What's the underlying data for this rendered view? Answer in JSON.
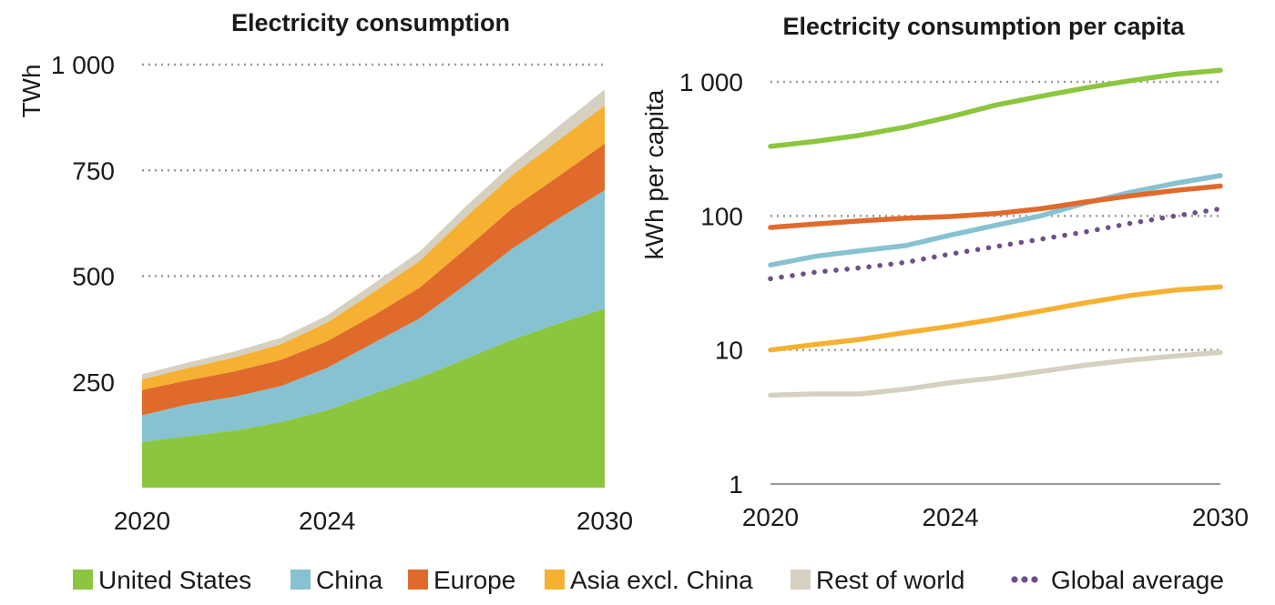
{
  "chart_data": [
    {
      "type": "area",
      "title": "Electricity consumption",
      "xlabel": "",
      "ylabel": "TWh",
      "x": [
        2020,
        2021,
        2022,
        2023,
        2024,
        2025,
        2026,
        2027,
        2028,
        2029,
        2030
      ],
      "xticks": [
        "2020",
        "2024",
        "2030"
      ],
      "yticks": [
        "250",
        "500",
        "750",
        "1 000"
      ],
      "ylim": [
        0,
        1000
      ],
      "stacked": true,
      "grid": "horizontal dotted",
      "series": [
        {
          "name": "United States",
          "color": "#8cc63f",
          "values": [
            108,
            122,
            135,
            155,
            183,
            222,
            260,
            305,
            350,
            388,
            423
          ]
        },
        {
          "name": "China",
          "color": "#86c2d2",
          "values": [
            63,
            75,
            80,
            85,
            100,
            120,
            140,
            175,
            215,
            248,
            280
          ]
        },
        {
          "name": "Europe",
          "color": "#e06a2c",
          "values": [
            60,
            57,
            60,
            62,
            63,
            65,
            73,
            85,
            95,
            100,
            110
          ]
        },
        {
          "name": "Asia excl. China",
          "color": "#f6b132",
          "values": [
            25,
            29,
            33,
            37,
            44,
            55,
            63,
            75,
            78,
            85,
            90
          ]
        },
        {
          "name": "Rest of world",
          "color": "#d5d0c0",
          "values": [
            12,
            13,
            14,
            15,
            17,
            20,
            22,
            25,
            27,
            33,
            38
          ]
        }
      ]
    },
    {
      "type": "line",
      "title": "Electricity consumption per capita",
      "xlabel": "",
      "ylabel": "kWh per capita",
      "yscale": "log",
      "x": [
        2020,
        2021,
        2022,
        2023,
        2024,
        2025,
        2026,
        2027,
        2028,
        2029,
        2030
      ],
      "xticks": [
        "2020",
        "2024",
        "2030"
      ],
      "yticks": [
        "1",
        "10",
        "100",
        "1 000"
      ],
      "ylim": [
        1,
        1000
      ],
      "grid": "horizontal dotted",
      "series": [
        {
          "name": "United States",
          "color": "#8cc63f",
          "style": "solid",
          "values": [
            330,
            360,
            400,
            460,
            550,
            670,
            780,
            900,
            1020,
            1140,
            1220
          ]
        },
        {
          "name": "China",
          "color": "#86c2d2",
          "style": "solid",
          "values": [
            43,
            50,
            55,
            60,
            72,
            85,
            100,
            125,
            150,
            175,
            200
          ]
        },
        {
          "name": "Europe",
          "color": "#e06a2c",
          "style": "solid",
          "values": [
            82,
            87,
            92,
            96,
            99,
            104,
            113,
            127,
            141,
            155,
            167
          ]
        },
        {
          "name": "Asia excl. China",
          "color": "#f6b132",
          "style": "solid",
          "values": [
            10,
            11,
            12,
            13.5,
            15,
            17,
            19.5,
            22.5,
            25.5,
            28,
            29.5
          ]
        },
        {
          "name": "Rest of world",
          "color": "#d5d0c0",
          "style": "solid",
          "values": [
            4.6,
            4.7,
            4.7,
            5.1,
            5.7,
            6.2,
            6.9,
            7.7,
            8.4,
            9.0,
            9.6
          ]
        },
        {
          "name": "Global average",
          "color": "#6e4f8a",
          "style": "dotted",
          "values": [
            34,
            38,
            41,
            45,
            52,
            59,
            67,
            76,
            88,
            100,
            113
          ]
        }
      ]
    }
  ],
  "legend": {
    "placement": "bottom",
    "items": [
      {
        "label": "United States",
        "color": "#8cc63f",
        "marker": "square"
      },
      {
        "label": "China",
        "color": "#86c2d2",
        "marker": "square"
      },
      {
        "label": "Europe",
        "color": "#e06a2c",
        "marker": "square"
      },
      {
        "label": "Asia excl. China",
        "color": "#f6b132",
        "marker": "square"
      },
      {
        "label": "Rest of world",
        "color": "#d5d0c0",
        "marker": "square"
      },
      {
        "label": "Global average",
        "color": "#6e4f8a",
        "marker": "dots"
      }
    ]
  }
}
